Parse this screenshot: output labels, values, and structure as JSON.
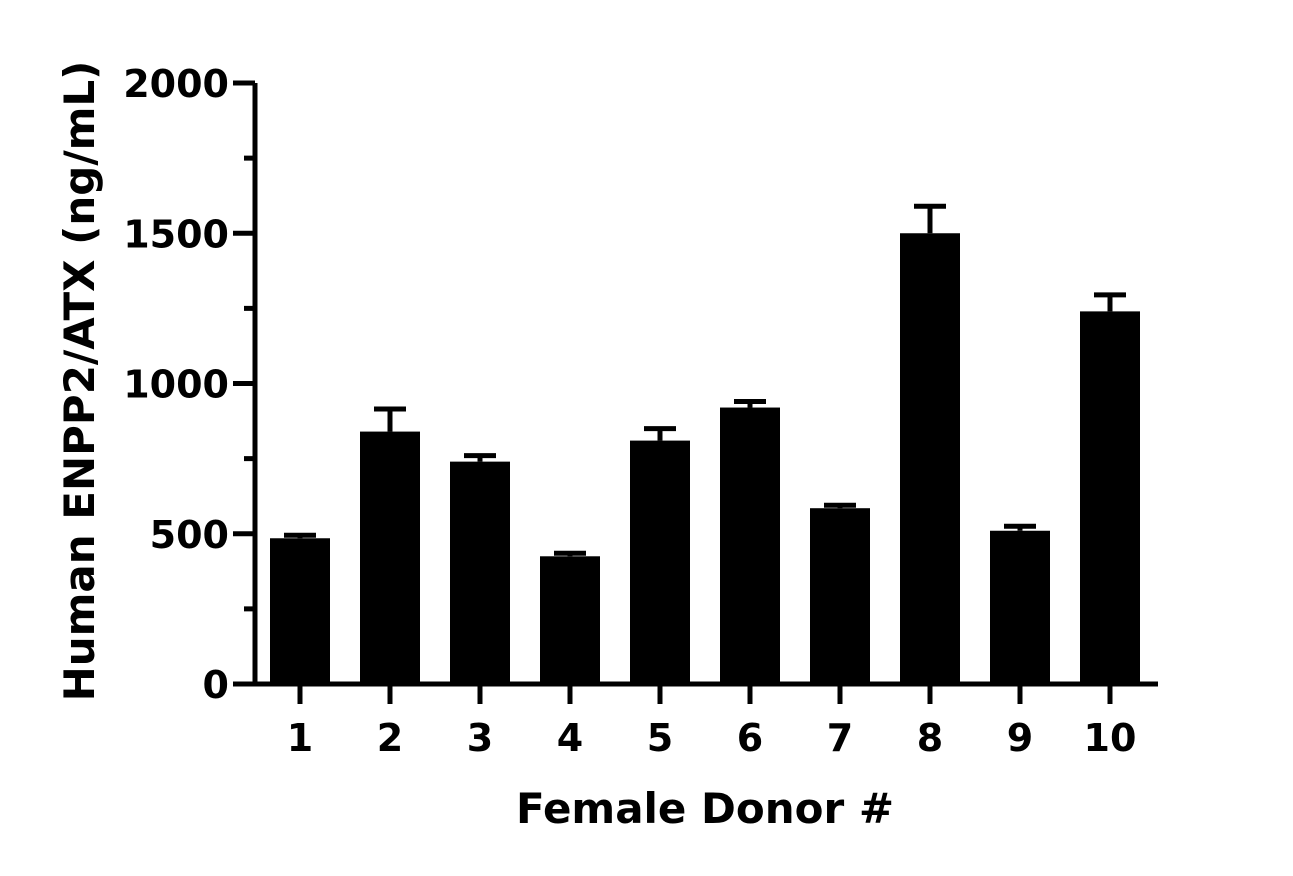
{
  "chart_data": {
    "type": "bar",
    "title": "",
    "xlabel": "Female Donor #",
    "ylabel": "Human ENPP2/ATX (ng/mL)",
    "categories": [
      "1",
      "2",
      "3",
      "4",
      "5",
      "6",
      "7",
      "8",
      "9",
      "10"
    ],
    "values": [
      485,
      840,
      740,
      425,
      810,
      920,
      585,
      1500,
      510,
      1240
    ],
    "error_upper": [
      495,
      915,
      760,
      435,
      850,
      940,
      595,
      1590,
      525,
      1295
    ],
    "ylim": [
      0,
      2000
    ],
    "y_ticks": [
      0,
      500,
      1000,
      1500,
      2000
    ],
    "y_minor_ticks": [
      250,
      750,
      1250,
      1750
    ],
    "grid": false,
    "legend": "none",
    "bar_color": "#000000"
  }
}
